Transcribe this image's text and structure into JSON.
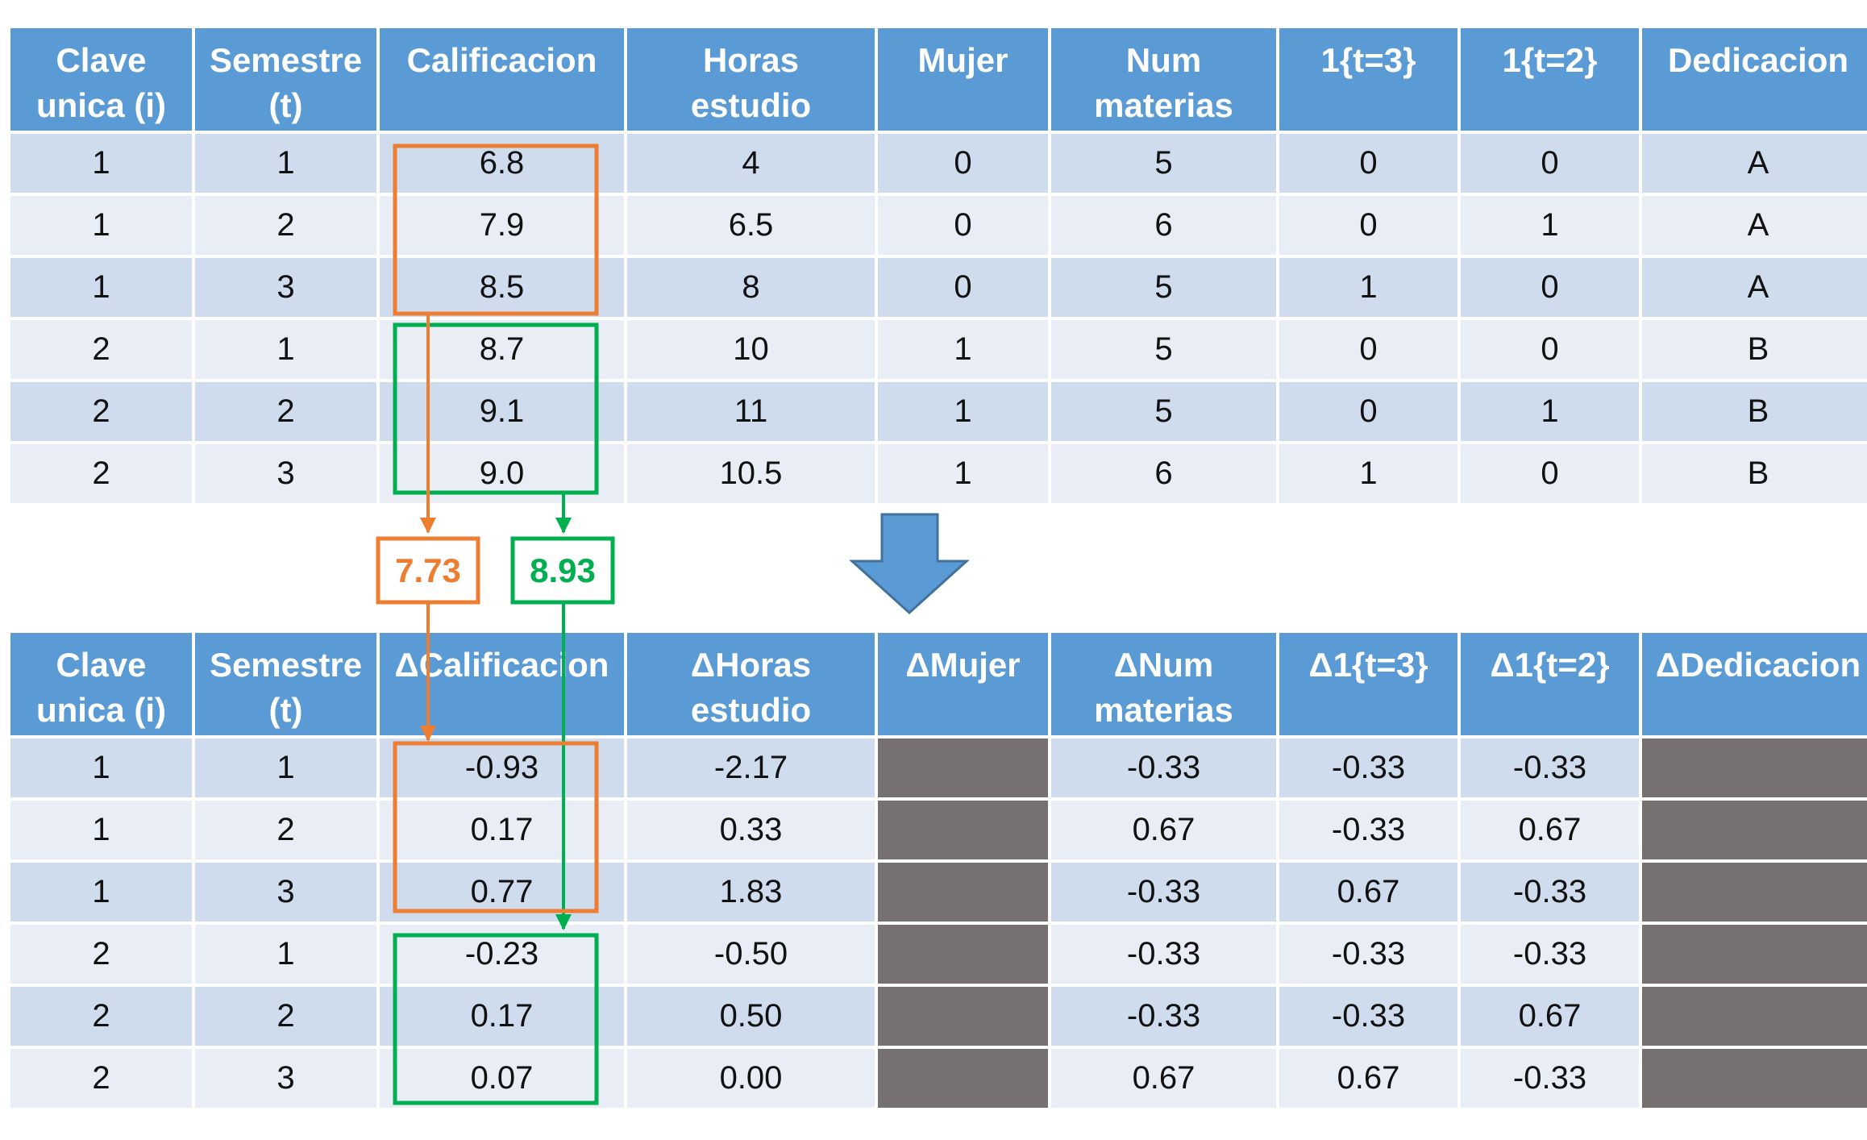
{
  "colors": {
    "header_bg": "#5b9bd5",
    "row_dark": "#cfdcee",
    "row_light": "#e8edf6",
    "masked": "#767170",
    "orange": "#ed7d31",
    "green": "#00b050",
    "big_arrow": "#5b9bd5"
  },
  "top_table": {
    "headers": [
      "Clave\nunica (i)",
      "Semestre\n(t)",
      "Calificacion",
      "Horas\nestudio",
      "Mujer",
      "Num\nmaterias",
      "1{t=3}",
      "1{t=2}",
      "Dedicacion"
    ],
    "rows": [
      [
        "1",
        "1",
        "6.8",
        "4",
        "0",
        "5",
        "0",
        "0",
        "A"
      ],
      [
        "1",
        "2",
        "7.9",
        "6.5",
        "0",
        "6",
        "0",
        "1",
        "A"
      ],
      [
        "1",
        "3",
        "8.5",
        "8",
        "0",
        "5",
        "1",
        "0",
        "A"
      ],
      [
        "2",
        "1",
        "8.7",
        "10",
        "1",
        "5",
        "0",
        "0",
        "B"
      ],
      [
        "2",
        "2",
        "9.1",
        "11",
        "1",
        "5",
        "0",
        "1",
        "B"
      ],
      [
        "2",
        "3",
        "9.0",
        "10.5",
        "1",
        "6",
        "1",
        "0",
        "B"
      ]
    ]
  },
  "means": {
    "unit1": "7.73",
    "unit2": "8.93"
  },
  "bottom_table": {
    "headers": [
      "Clave\nunica (i)",
      "Semestre\n(t)",
      "ΔCalificacion",
      "ΔHoras\nestudio",
      "ΔMujer",
      "ΔNum\nmaterias",
      "Δ1{t=3}",
      "Δ1{t=2}",
      "ΔDedicacion"
    ],
    "rows": [
      [
        "1",
        "1",
        "-0.93",
        "-2.17",
        "",
        "-0.33",
        "-0.33",
        "-0.33",
        ""
      ],
      [
        "1",
        "2",
        "0.17",
        "0.33",
        "",
        "0.67",
        "-0.33",
        "0.67",
        ""
      ],
      [
        "1",
        "3",
        "0.77",
        "1.83",
        "",
        "-0.33",
        "0.67",
        "-0.33",
        ""
      ],
      [
        "2",
        "1",
        "-0.23",
        "-0.50",
        "",
        "-0.33",
        "-0.33",
        "-0.33",
        ""
      ],
      [
        "2",
        "2",
        "0.17",
        "0.50",
        "",
        "-0.33",
        "-0.33",
        "0.67",
        ""
      ],
      [
        "2",
        "3",
        "0.07",
        "0.00",
        "",
        "0.67",
        "0.67",
        "-0.33",
        ""
      ]
    ],
    "masked_columns": [
      4,
      8
    ]
  }
}
